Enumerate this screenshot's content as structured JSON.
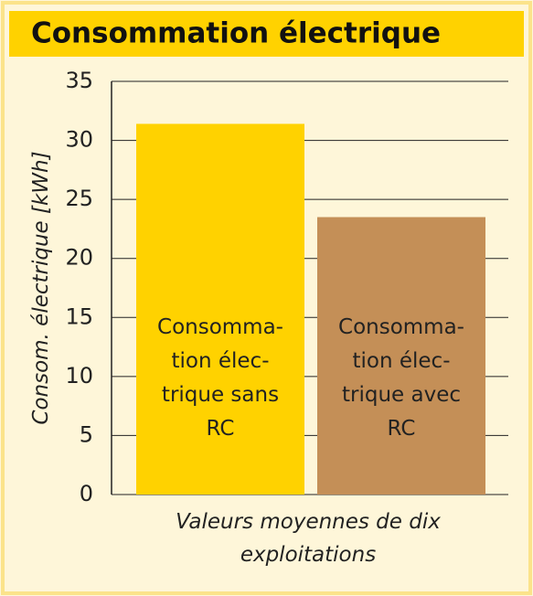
{
  "chart_data": {
    "type": "bar",
    "title": "Consommation électrique",
    "categories": [
      "Consomma-\ntion élec-\ntrique sans\nRC",
      "Consomma-\ntion élec-\ntrique avec\nRC"
    ],
    "values": [
      31.4,
      23.5
    ],
    "colors": [
      "#ffd200",
      "#c48f57"
    ],
    "x_label": "Valeurs moyennes de dix exploitations",
    "y_label": "Consom. électrique [kWh]",
    "ylim": [
      0,
      35
    ],
    "yticks": [
      0,
      5,
      10,
      15,
      20,
      25,
      30,
      35
    ],
    "grid": true
  }
}
